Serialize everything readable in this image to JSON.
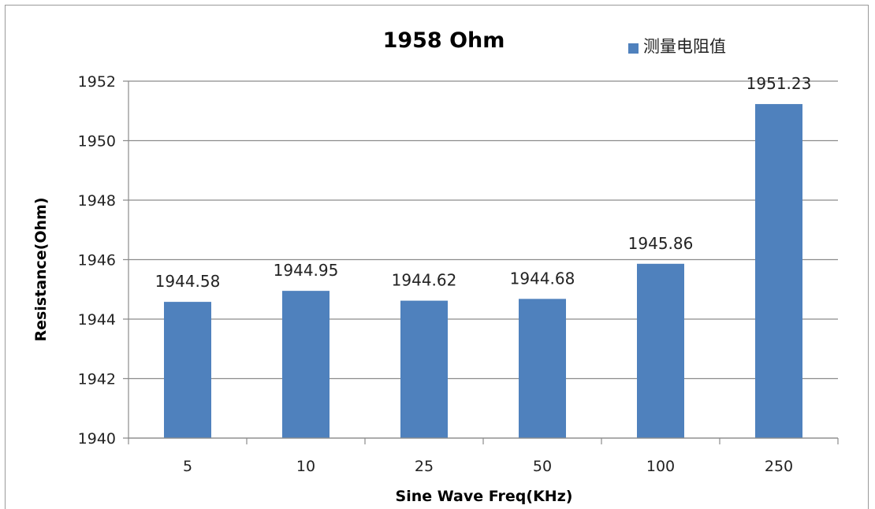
{
  "chart_data": {
    "type": "bar",
    "title": "1958 Ohm",
    "xlabel": "Sine Wave Freq(KHz)",
    "ylabel": "Resistance(Ohm)",
    "categories": [
      "5",
      "10",
      "25",
      "50",
      "100",
      "250"
    ],
    "series": [
      {
        "name": "测量电阻值",
        "values": [
          1944.58,
          1944.95,
          1944.62,
          1944.68,
          1945.86,
          1951.23
        ],
        "labels": [
          "1944.58",
          "1944.95",
          "1944.62",
          "1944.68",
          "1945.86",
          "1951.23"
        ],
        "color": "#4f81bd"
      }
    ],
    "ylim": [
      1940,
      1952
    ],
    "yticks": [
      "1940",
      "1942",
      "1944",
      "1946",
      "1948",
      "1950",
      "1952"
    ],
    "grid": true,
    "legend_position": "top-right",
    "gridline_color": "#8c8c8c"
  }
}
